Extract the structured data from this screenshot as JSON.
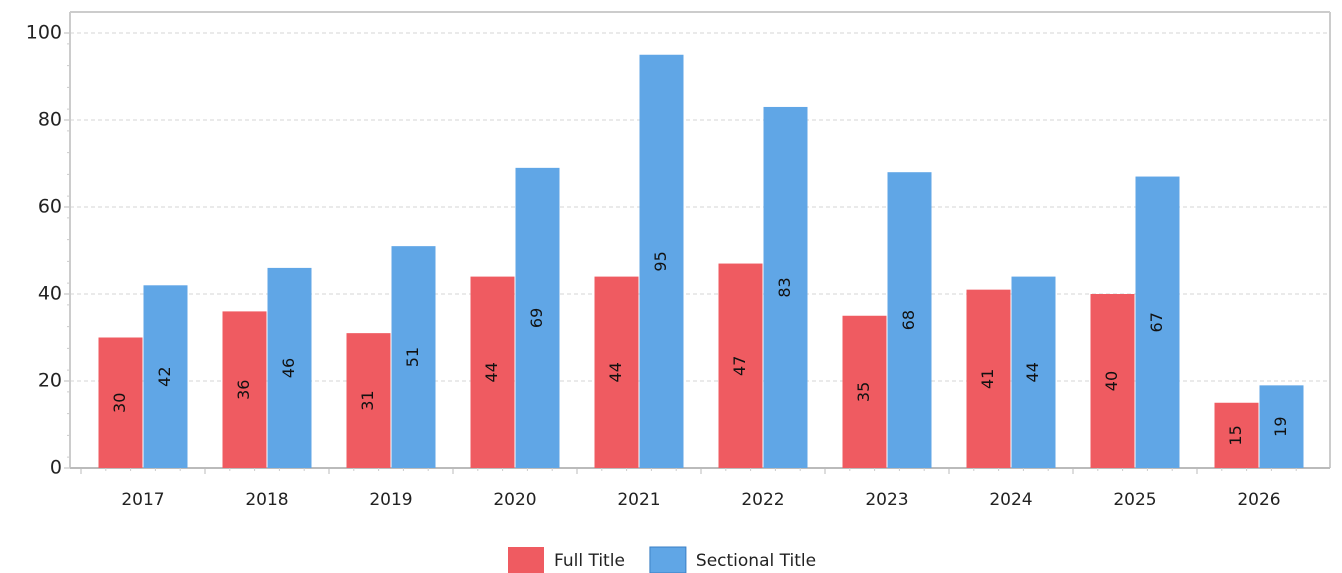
{
  "chart_data": {
    "type": "bar",
    "categories": [
      "2017",
      "2018",
      "2019",
      "2020",
      "2021",
      "2022",
      "2023",
      "2024",
      "2025",
      "2026"
    ],
    "series": [
      {
        "name": "Full Title",
        "color": "#ef5b61",
        "values": [
          30,
          36,
          31,
          44,
          44,
          47,
          35,
          41,
          40,
          15
        ]
      },
      {
        "name": "Sectional Title",
        "color": "#60a6e6",
        "values": [
          42,
          46,
          51,
          69,
          95,
          83,
          68,
          44,
          67,
          19
        ]
      }
    ],
    "ylim": [
      0,
      100
    ],
    "yticks": [
      0,
      20,
      40,
      60,
      80,
      100
    ],
    "grid": true,
    "legend": "bottom"
  }
}
